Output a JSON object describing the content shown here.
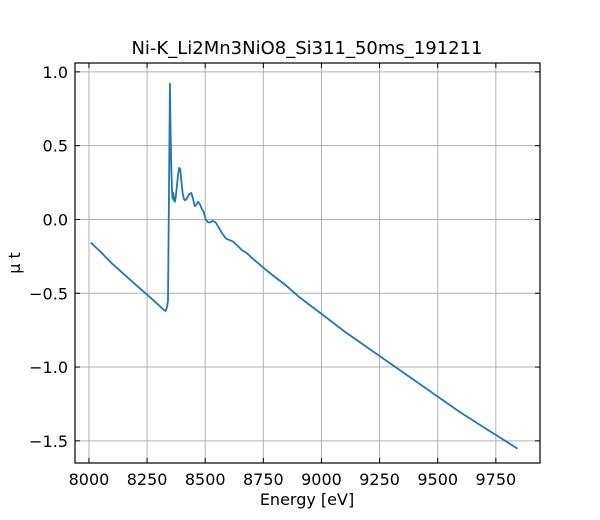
{
  "chart_data": {
    "type": "line",
    "title": "Ni-K_Li2Mn3NiO8_Si311_50ms_191211",
    "xlabel": "Energy [eV]",
    "ylabel": "μ t",
    "xlim": [
      7940,
      9940
    ],
    "ylim": [
      -1.65,
      1.06
    ],
    "grid": true,
    "xticks": [
      8000,
      8250,
      8500,
      8750,
      9000,
      9250,
      9500,
      9750
    ],
    "yticks": [
      1.0,
      0.5,
      0.0,
      -0.5,
      -1.0,
      -1.5
    ],
    "xtick_labels": [
      "8000",
      "8250",
      "8500",
      "8750",
      "9000",
      "9250",
      "9500",
      "9750"
    ],
    "ytick_labels": [
      "1.0",
      "0.5",
      "0.0",
      "−0.5",
      "−1.0",
      "−1.5"
    ],
    "series": [
      {
        "color": "#1f77b4",
        "x": [
          8010,
          8050,
          8100,
          8150,
          8200,
          8250,
          8300,
          8320,
          8330,
          8336,
          8340,
          8345,
          8348,
          8351,
          8354,
          8357,
          8360,
          8363,
          8366,
          8370,
          8374,
          8378,
          8383,
          8388,
          8393,
          8398,
          8403,
          8408,
          8413,
          8420,
          8430,
          8440,
          8448,
          8455,
          8462,
          8470,
          8478,
          8486,
          8494,
          8502,
          8512,
          8522,
          8532,
          8545,
          8560,
          8575,
          8590,
          8605,
          8620,
          8640,
          8660,
          8680,
          8700,
          8730,
          8760,
          8800,
          8850,
          8900,
          8950,
          9000,
          9100,
          9200,
          9300,
          9400,
          9500,
          9600,
          9700,
          9800,
          9840
        ],
        "y": [
          -0.16,
          -0.22,
          -0.3,
          -0.37,
          -0.44,
          -0.51,
          -0.58,
          -0.61,
          -0.62,
          -0.59,
          -0.55,
          0.35,
          0.92,
          0.6,
          0.35,
          0.2,
          0.14,
          0.18,
          0.13,
          0.12,
          0.16,
          0.22,
          0.3,
          0.35,
          0.34,
          0.25,
          0.18,
          0.14,
          0.13,
          0.14,
          0.17,
          0.18,
          0.14,
          0.09,
          0.1,
          0.12,
          0.1,
          0.07,
          0.05,
          0.0,
          -0.02,
          -0.02,
          -0.01,
          -0.02,
          -0.06,
          -0.1,
          -0.13,
          -0.14,
          -0.15,
          -0.18,
          -0.21,
          -0.23,
          -0.26,
          -0.3,
          -0.34,
          -0.39,
          -0.45,
          -0.52,
          -0.58,
          -0.64,
          -0.76,
          -0.87,
          -0.98,
          -1.09,
          -1.2,
          -1.31,
          -1.41,
          -1.51,
          -1.55
        ]
      }
    ]
  }
}
